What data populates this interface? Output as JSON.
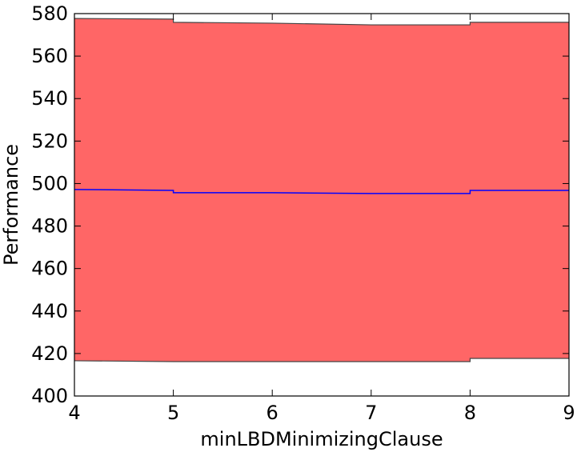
{
  "chart_data": {
    "type": "line",
    "xlabel": "minLBDMinimizingClause",
    "ylabel": "Performance",
    "x": [
      4,
      5,
      5,
      6,
      7,
      8,
      8,
      9
    ],
    "series": [
      {
        "color": "#0000ff",
        "values": [
          497.2,
          496.8,
          495.7,
          495.7,
          495.3,
          495.3,
          496.8,
          496.8
        ]
      }
    ],
    "band": {
      "color": "#ff6666",
      "edge": "#444444",
      "upper": [
        577.7,
        577.4,
        575.9,
        575.5,
        574.7,
        574.7,
        575.9,
        575.9
      ],
      "lower": [
        416.6,
        416.2,
        416.2,
        416.2,
        416.2,
        416.2,
        417.7,
        417.7
      ]
    },
    "xlim": [
      4,
      9
    ],
    "xticks": [
      4,
      5,
      6,
      7,
      8,
      9
    ],
    "ylim": [
      400,
      580
    ],
    "yticks": [
      400,
      420,
      440,
      460,
      480,
      500,
      520,
      540,
      560,
      580
    ]
  }
}
